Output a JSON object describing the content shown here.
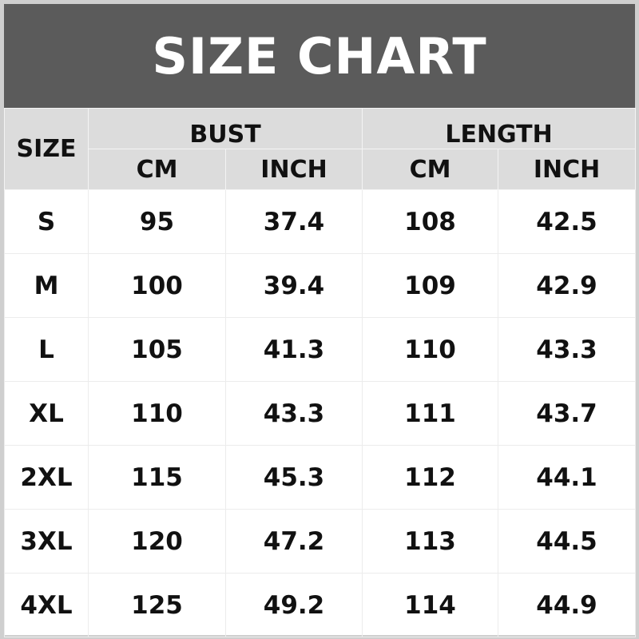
{
  "title": "SIZE CHART",
  "headers": {
    "size": "SIZE",
    "bust": "BUST",
    "length": "LENGTH",
    "cm": "CM",
    "inch": "INCH"
  },
  "rows": [
    [
      "S",
      "95",
      "37.4",
      "108",
      "42.5"
    ],
    [
      "M",
      "100",
      "39.4",
      "109",
      "42.9"
    ],
    [
      "L",
      "105",
      "41.3",
      "110",
      "43.3"
    ],
    [
      "XL",
      "110",
      "43.3",
      "111",
      "43.7"
    ],
    [
      "2XL",
      "115",
      "45.3",
      "112",
      "44.1"
    ],
    [
      "3XL",
      "120",
      "47.2",
      "113",
      "44.5"
    ],
    [
      "4XL",
      "125",
      "49.2",
      "114",
      "44.9"
    ]
  ]
}
